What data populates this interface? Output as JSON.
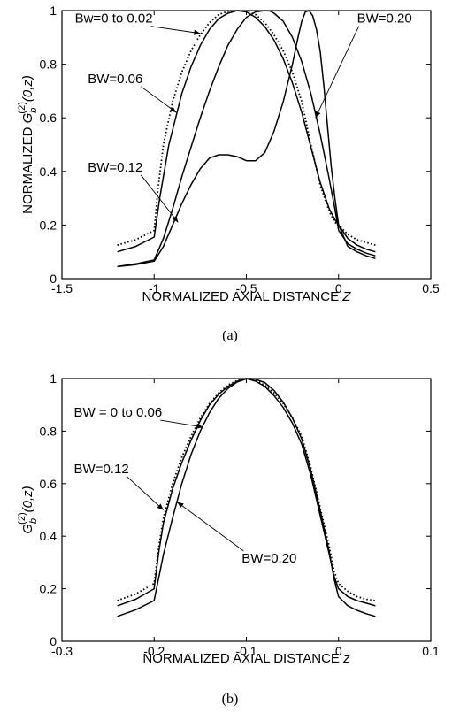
{
  "chart_data": [
    {
      "type": "line",
      "caption": "(a)",
      "xlabel_main": "NORMALIZED AXIAL DISTANCE ",
      "xlabel_var": "Z",
      "ylabel_main": "NORMALIZED ",
      "ylabel_G": "G",
      "ylabel_sub": "b",
      "ylabel_sup": "(2)",
      "ylabel_args": "(0,z)",
      "xlim": [
        -1.5,
        0.5
      ],
      "ylim": [
        0,
        1
      ],
      "xticks": [
        "-1.5",
        "-1",
        "-0.5",
        "0",
        "0.5"
      ],
      "yticks": [
        "0",
        "0.2",
        "0.4",
        "0.6",
        "0.8",
        "1"
      ],
      "series": [
        {
          "name": "Bw=0 to 0.02",
          "style": "dotted",
          "x": [
            -1.2,
            -1.1,
            -1.0,
            -0.98,
            -0.95,
            -0.9,
            -0.85,
            -0.8,
            -0.75,
            -0.7,
            -0.65,
            -0.6,
            -0.55,
            -0.5,
            -0.45,
            -0.4,
            -0.35,
            -0.3,
            -0.25,
            -0.2,
            -0.15,
            -0.1,
            -0.05,
            -0.02,
            0.0,
            0.05,
            0.1,
            0.15,
            0.2
          ],
          "y": [
            0.125,
            0.145,
            0.18,
            0.33,
            0.5,
            0.66,
            0.77,
            0.85,
            0.91,
            0.955,
            0.985,
            0.997,
            1.0,
            0.997,
            0.985,
            0.955,
            0.91,
            0.85,
            0.77,
            0.66,
            0.5,
            0.35,
            0.25,
            0.21,
            0.2,
            0.165,
            0.145,
            0.135,
            0.125
          ]
        },
        {
          "name": "BW=0.06",
          "style": "solid",
          "x": [
            -1.2,
            -1.1,
            -1.0,
            -0.97,
            -0.92,
            -0.85,
            -0.8,
            -0.75,
            -0.7,
            -0.65,
            -0.6,
            -0.55,
            -0.5,
            -0.45,
            -0.4,
            -0.35,
            -0.3,
            -0.25,
            -0.2,
            -0.15,
            -0.1,
            -0.05,
            -0.02,
            0.0,
            0.05,
            0.1,
            0.15,
            0.2
          ],
          "y": [
            0.1,
            0.12,
            0.155,
            0.3,
            0.5,
            0.69,
            0.79,
            0.87,
            0.93,
            0.97,
            0.99,
            1.0,
            0.995,
            0.975,
            0.94,
            0.89,
            0.82,
            0.73,
            0.62,
            0.49,
            0.36,
            0.26,
            0.22,
            0.2,
            0.15,
            0.125,
            0.11,
            0.1
          ]
        },
        {
          "name": "",
          "style": "solid",
          "x": [
            -1.2,
            -1.1,
            -1.0,
            -0.95,
            -0.9,
            -0.85,
            -0.8,
            -0.75,
            -0.7,
            -0.65,
            -0.6,
            -0.55,
            -0.5,
            -0.45,
            -0.4,
            -0.37,
            -0.35,
            -0.3,
            -0.25,
            -0.2,
            -0.15,
            -0.1,
            -0.05,
            -0.02,
            0.0,
            0.05,
            0.1,
            0.15,
            0.2
          ],
          "y": [
            0.045,
            0.055,
            0.07,
            0.15,
            0.26,
            0.38,
            0.49,
            0.6,
            0.7,
            0.79,
            0.87,
            0.93,
            0.975,
            0.995,
            1.0,
            0.998,
            0.99,
            0.96,
            0.9,
            0.81,
            0.69,
            0.54,
            0.37,
            0.26,
            0.18,
            0.13,
            0.11,
            0.095,
            0.085
          ]
        },
        {
          "name": "BW=0.20",
          "style": "solid",
          "x": [
            -1.2,
            -1.1,
            -1.0,
            -0.95,
            -0.9,
            -0.85,
            -0.8,
            -0.75,
            -0.7,
            -0.65,
            -0.6,
            -0.55,
            -0.5,
            -0.45,
            -0.4,
            -0.35,
            -0.3,
            -0.25,
            -0.22,
            -0.2,
            -0.18,
            -0.16,
            -0.14,
            -0.12,
            -0.1,
            -0.08,
            -0.06,
            -0.04,
            -0.02,
            0.0,
            0.05,
            0.1,
            0.15,
            0.2
          ],
          "y": [
            0.045,
            0.052,
            0.065,
            0.12,
            0.2,
            0.28,
            0.35,
            0.41,
            0.45,
            0.462,
            0.462,
            0.455,
            0.44,
            0.44,
            0.47,
            0.55,
            0.66,
            0.8,
            0.9,
            0.96,
            0.995,
            1.0,
            0.98,
            0.93,
            0.85,
            0.72,
            0.57,
            0.42,
            0.3,
            0.2,
            0.12,
            0.1,
            0.085,
            0.075
          ]
        }
      ],
      "annotations": [
        {
          "text": "Bw=0 to 0.02",
          "tx": -1.43,
          "ty": 0.955,
          "ax": -0.75,
          "ay": 0.915,
          "anchor": "start"
        },
        {
          "text": "BW=0.06",
          "tx": -1.36,
          "ty": 0.73,
          "ax": -0.88,
          "ay": 0.62,
          "anchor": "start"
        },
        {
          "text": "BW=0.12",
          "tx": -1.36,
          "ty": 0.4,
          "ax": -0.87,
          "ay": 0.21,
          "anchor": "start"
        },
        {
          "text": "BW=0.20",
          "tx": 0.1,
          "ty": 0.955,
          "ax": -0.125,
          "ay": 0.6,
          "anchor": "start"
        }
      ]
    },
    {
      "type": "line",
      "caption": "(b)",
      "xlabel_main": "NORMALIZED AXIAL DISTANCE ",
      "xlabel_var": "z",
      "ylabel_main": "",
      "ylabel_G": "G",
      "ylabel_sub": "b",
      "ylabel_sup": "(2)",
      "ylabel_args": "(0,z)",
      "xlim": [
        -0.3,
        0.1
      ],
      "ylim": [
        0,
        1
      ],
      "xticks": [
        "-0.3",
        "-0.2",
        "-0.1",
        "0",
        "0.1"
      ],
      "yticks": [
        "0",
        "0.2",
        "0.4",
        "0.6",
        "0.8",
        "1"
      ],
      "series": [
        {
          "name": "BW = 0 to 0.06",
          "style": "dotted",
          "x": [
            -0.24,
            -0.22,
            -0.2,
            -0.195,
            -0.19,
            -0.18,
            -0.17,
            -0.16,
            -0.15,
            -0.14,
            -0.13,
            -0.12,
            -0.11,
            -0.1,
            -0.09,
            -0.08,
            -0.07,
            -0.06,
            -0.05,
            -0.04,
            -0.03,
            -0.02,
            -0.01,
            -0.005,
            0.0,
            0.01,
            0.02,
            0.03,
            0.04
          ],
          "y": [
            0.155,
            0.18,
            0.22,
            0.36,
            0.47,
            0.6,
            0.7,
            0.78,
            0.85,
            0.905,
            0.945,
            0.975,
            0.993,
            1.0,
            0.993,
            0.975,
            0.945,
            0.905,
            0.85,
            0.78,
            0.66,
            0.51,
            0.36,
            0.27,
            0.22,
            0.19,
            0.17,
            0.16,
            0.155
          ]
        },
        {
          "name": "BW=0.12",
          "style": "solid",
          "x": [
            -0.24,
            -0.22,
            -0.2,
            -0.195,
            -0.19,
            -0.18,
            -0.17,
            -0.16,
            -0.15,
            -0.14,
            -0.13,
            -0.12,
            -0.11,
            -0.1,
            -0.09,
            -0.08,
            -0.07,
            -0.06,
            -0.05,
            -0.04,
            -0.03,
            -0.02,
            -0.01,
            -0.005,
            0.0,
            0.01,
            0.02,
            0.03,
            0.04
          ],
          "y": [
            0.135,
            0.16,
            0.2,
            0.34,
            0.45,
            0.58,
            0.68,
            0.765,
            0.84,
            0.9,
            0.94,
            0.97,
            0.99,
            1.0,
            0.99,
            0.97,
            0.935,
            0.89,
            0.83,
            0.75,
            0.63,
            0.48,
            0.33,
            0.25,
            0.2,
            0.17,
            0.155,
            0.145,
            0.135
          ]
        },
        {
          "name": "BW=0.20",
          "style": "solid",
          "x": [
            -0.24,
            -0.22,
            -0.2,
            -0.19,
            -0.18,
            -0.17,
            -0.16,
            -0.15,
            -0.14,
            -0.13,
            -0.12,
            -0.11,
            -0.1,
            -0.095,
            -0.09,
            -0.08,
            -0.07,
            -0.06,
            -0.05,
            -0.04,
            -0.03,
            -0.02,
            -0.01,
            -0.005,
            0.0,
            0.01,
            0.02,
            0.03,
            0.04
          ],
          "y": [
            0.095,
            0.12,
            0.155,
            0.33,
            0.47,
            0.6,
            0.71,
            0.8,
            0.87,
            0.925,
            0.962,
            0.987,
            0.999,
            1.0,
            0.997,
            0.985,
            0.955,
            0.91,
            0.85,
            0.77,
            0.65,
            0.5,
            0.34,
            0.24,
            0.17,
            0.135,
            0.118,
            0.105,
            0.095
          ]
        }
      ],
      "annotations": [
        {
          "text": "BW = 0 to 0.06",
          "tx": -0.287,
          "ty": 0.855,
          "ax": -0.147,
          "ay": 0.815,
          "anchor": "start"
        },
        {
          "text": "BW=0.12",
          "tx": -0.287,
          "ty": 0.64,
          "ax": -0.19,
          "ay": 0.5,
          "anchor": "start"
        },
        {
          "text": "BW=0.20",
          "tx": -0.105,
          "ty": 0.3,
          "ax": -0.175,
          "ay": 0.53,
          "anchor": "start"
        }
      ]
    }
  ]
}
